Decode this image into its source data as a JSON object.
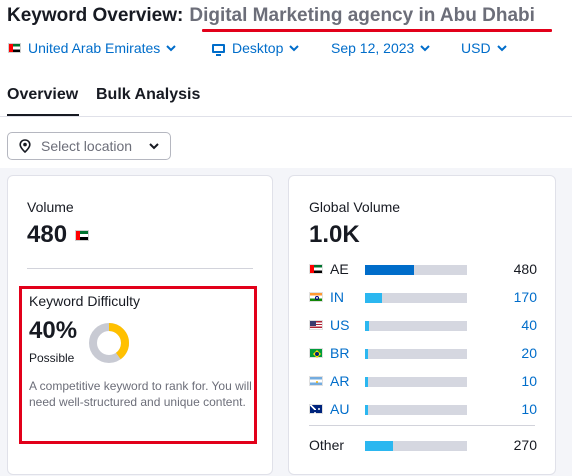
{
  "header": {
    "title_prefix": "Keyword Overview:",
    "keyword": "Digital Marketing agency in Abu Dhabi"
  },
  "filters": {
    "country": "United Arab Emirates",
    "device": "Desktop",
    "date": "Sep 12, 2023",
    "currency": "USD"
  },
  "tabs": [
    {
      "label": "Overview",
      "active": true
    },
    {
      "label": "Bulk Analysis",
      "active": false
    }
  ],
  "location": {
    "placeholder": "Select location"
  },
  "volume": {
    "label": "Volume",
    "value": "480",
    "flag_icon": "flag-ae-icon"
  },
  "keyword_difficulty": {
    "label": "Keyword Difficulty",
    "value": "40%",
    "percent": 40,
    "level": "Possible",
    "description": "A competitive keyword to rank for. You will need well-structured and unique content.",
    "color": "#ffc000",
    "track_color": "#c8cad3"
  },
  "global_volume": {
    "label": "Global Volume",
    "value": "1.0K",
    "countries": [
      {
        "code": "AE",
        "value": "480",
        "share": 0.48,
        "link": false,
        "bar_color": "#006dca",
        "flag_icon": "flag-ae-icon"
      },
      {
        "code": "IN",
        "value": "170",
        "share": 0.17,
        "link": true,
        "bar_color": "#2bb7f0",
        "flag_icon": "flag-in-icon"
      },
      {
        "code": "US",
        "value": "40",
        "share": 0.04,
        "link": true,
        "bar_color": "#2bb7f0",
        "flag_icon": "flag-us-icon"
      },
      {
        "code": "BR",
        "value": "20",
        "share": 0.03,
        "link": true,
        "bar_color": "#2bb7f0",
        "flag_icon": "flag-br-icon"
      },
      {
        "code": "AR",
        "value": "10",
        "share": 0.03,
        "link": true,
        "bar_color": "#2bb7f0",
        "flag_icon": "flag-ar-icon"
      },
      {
        "code": "AU",
        "value": "10",
        "share": 0.03,
        "link": true,
        "bar_color": "#2bb7f0",
        "flag_icon": "flag-au-icon"
      }
    ],
    "other": {
      "label": "Other",
      "value": "270",
      "share": 0.27,
      "bar_color": "#2bb7f0"
    }
  }
}
